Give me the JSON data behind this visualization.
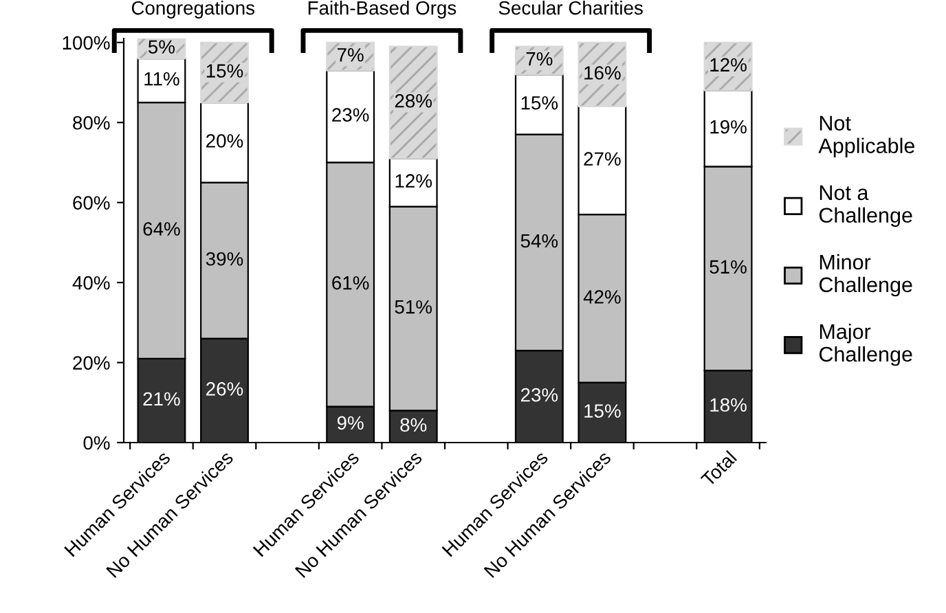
{
  "chart_data": {
    "type": "bar",
    "stacked": true,
    "categories": [
      "Human Services",
      "No Human Services",
      null,
      "Human Services",
      "No Human Services",
      null,
      "Human Services",
      "No Human Services",
      null,
      "Total"
    ],
    "series": [
      {
        "name": "Major Challenge",
        "color": "#333333",
        "values": [
          21,
          26,
          null,
          9,
          8,
          null,
          23,
          15,
          null,
          18
        ],
        "value_labels": [
          "21%",
          "26%",
          null,
          "9%",
          "8%",
          null,
          "23%",
          "15%",
          null,
          "18%"
        ]
      },
      {
        "name": "Minor Challenge",
        "color": "#c0c0c0",
        "values": [
          64,
          39,
          null,
          61,
          51,
          null,
          54,
          42,
          null,
          51
        ],
        "value_labels": [
          "64%",
          "39%",
          null,
          "61%",
          "51%",
          null,
          "54%",
          "42%",
          null,
          "51%"
        ]
      },
      {
        "name": "Not a Challenge",
        "color": "#ffffff",
        "values": [
          11,
          20,
          null,
          23,
          12,
          null,
          15,
          27,
          null,
          19
        ],
        "value_labels": [
          "11%",
          "20%",
          null,
          "23%",
          "12%",
          null,
          "15%",
          "27%",
          null,
          "19%"
        ]
      },
      {
        "name": "Not Applicable",
        "color": "#d9d9d9",
        "values": [
          5,
          15,
          null,
          7,
          28,
          null,
          7,
          16,
          null,
          12
        ],
        "value_labels": [
          "5%",
          "15%",
          null,
          "7%",
          "28%",
          null,
          "7%",
          "16%",
          null,
          "12%"
        ]
      }
    ],
    "annotations": [
      "Congregations",
      "Faith-Based Orgs",
      "Secular Charities"
    ],
    "ylim": [
      0,
      101
    ],
    "yticks": [
      {
        "value": 0,
        "label": "0%"
      },
      {
        "value": 20,
        "label": "20%"
      },
      {
        "value": 40,
        "label": "40%"
      },
      {
        "value": 60,
        "label": "60%"
      },
      {
        "value": 80,
        "label": "80%"
      },
      {
        "value": 100,
        "label": "100%"
      }
    ],
    "legend": "right",
    "grid": false
  }
}
